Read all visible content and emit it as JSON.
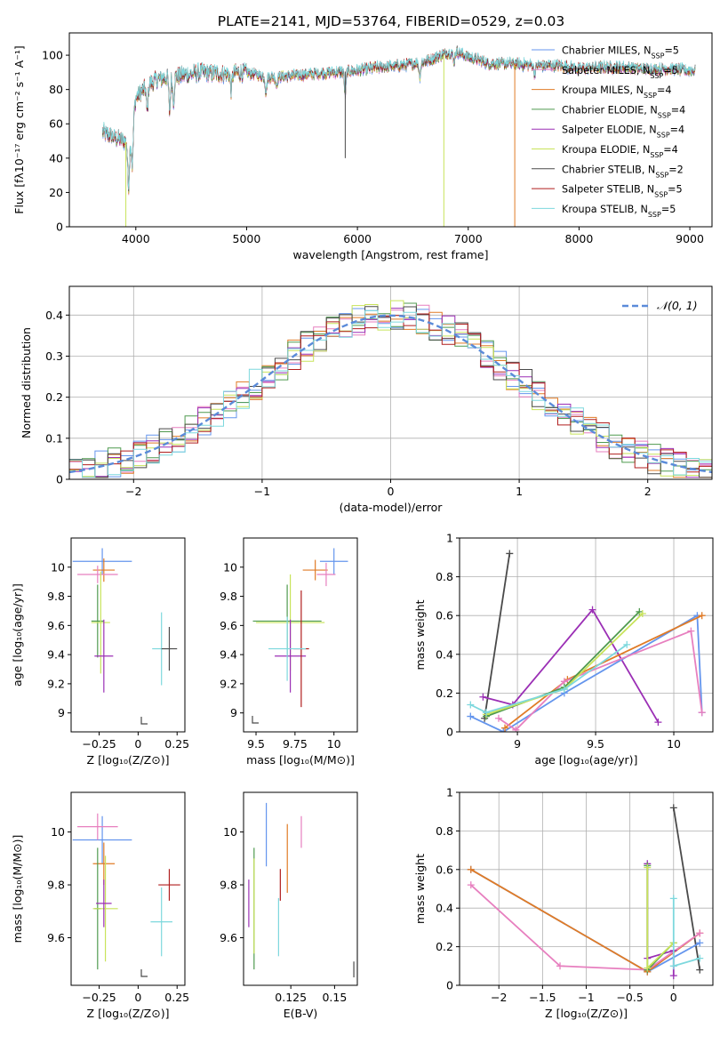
{
  "figure": {
    "title": "PLATE=2141, MJD=53764, FIBERID=0529, z=0.03"
  },
  "colors": {
    "chabrier_miles": "#6495ed",
    "salpeter_miles": "#e77fbf",
    "kroupa_miles": "#e07b26",
    "chabrier_elodie": "#4f9a4f",
    "salpeter_elodie": "#9b2fb5",
    "kroupa_elodie": "#c8e35a",
    "chabrier_stelib": "#4a4a4a",
    "salpeter_stelib": "#b01e1e",
    "kroupa_stelib": "#7dd8dd",
    "normal": "#5b8bd9"
  },
  "chart_data": [
    {
      "type": "line",
      "id": "spectrum",
      "xlabel": "wavelength [Angstrom, rest frame]",
      "ylabel": "Flux [fλ10⁻¹⁷ erg cm⁻² s⁻¹ A⁻¹]",
      "xlim": [
        3400,
        9200
      ],
      "ylim": [
        0,
        113
      ],
      "xticks": [
        "4000",
        "5000",
        "6000",
        "7000",
        "8000",
        "9000"
      ],
      "yticks": [
        "0",
        "20",
        "40",
        "60",
        "80",
        "100"
      ],
      "legend": "top-right",
      "series": [
        {
          "label": "Chabrier MILES, N",
          "sub": "SSP",
          "n": "=5",
          "color": "#6495ed"
        },
        {
          "label": "Salpeter MILES, N",
          "sub": "SSP",
          "n": "=5",
          "color": "#e77fbf"
        },
        {
          "label": "Kroupa MILES, N",
          "sub": "SSP",
          "n": "=4",
          "color": "#e07b26"
        },
        {
          "label": "Chabrier ELODIE, N",
          "sub": "SSP",
          "n": "=4",
          "color": "#4f9a4f"
        },
        {
          "label": "Salpeter ELODIE, N",
          "sub": "SSP",
          "n": "=4",
          "color": "#9b2fb5"
        },
        {
          "label": "Kroupa ELODIE, N",
          "sub": "SSP",
          "n": "=4",
          "color": "#c8e35a"
        },
        {
          "label": "Chabrier STELIB, N",
          "sub": "SSP",
          "n": "=2",
          "color": "#4a4a4a"
        },
        {
          "label": "Salpeter STELIB, N",
          "sub": "SSP",
          "n": "=5",
          "color": "#b01e1e"
        },
        {
          "label": "Kroupa STELIB, N",
          "sub": "SSP",
          "n": "=5",
          "color": "#7dd8dd"
        }
      ],
      "continuum": [
        [
          3700,
          55
        ],
        [
          3800,
          52
        ],
        [
          3900,
          50
        ],
        [
          3950,
          48
        ],
        [
          4000,
          75
        ],
        [
          4100,
          82
        ],
        [
          4200,
          86
        ],
        [
          4400,
          88
        ],
        [
          4600,
          90
        ],
        [
          4800,
          89
        ],
        [
          5000,
          90
        ],
        [
          5200,
          87
        ],
        [
          5400,
          88
        ],
        [
          5600,
          89
        ],
        [
          5800,
          90
        ],
        [
          6000,
          91
        ],
        [
          6200,
          93
        ],
        [
          6400,
          94
        ],
        [
          6600,
          96
        ],
        [
          6800,
          101
        ],
        [
          6900,
          102
        ],
        [
          7000,
          99
        ],
        [
          7200,
          95
        ],
        [
          7400,
          95
        ],
        [
          7600,
          94
        ],
        [
          7800,
          94
        ],
        [
          8000,
          92
        ],
        [
          8200,
          93
        ],
        [
          8400,
          93
        ],
        [
          8600,
          92
        ],
        [
          8800,
          92
        ],
        [
          9000,
          91
        ]
      ],
      "absorption": [
        [
          3934,
          25
        ],
        [
          3969,
          22
        ],
        [
          4102,
          15
        ],
        [
          4305,
          20
        ],
        [
          4340,
          14
        ],
        [
          4861,
          10
        ],
        [
          5175,
          9
        ],
        [
          5270,
          5
        ],
        [
          5890,
          14
        ],
        [
          6563,
          8
        ],
        [
          6870,
          6
        ],
        [
          7600,
          5
        ]
      ],
      "spikes": [
        [
          3910,
          0,
          "#c8e35a"
        ],
        [
          5890,
          40,
          "#4a4a4a"
        ],
        [
          6780,
          0,
          "#c8e35a"
        ],
        [
          7420,
          0,
          "#e07b26"
        ]
      ]
    },
    {
      "type": "step",
      "id": "residuals",
      "xlabel": "(data-model)/error",
      "ylabel": "Normed distribution",
      "xlim": [
        -2.5,
        2.5
      ],
      "ylim": [
        0,
        0.47
      ],
      "xticks": [
        -2,
        -1,
        0,
        1,
        2
      ],
      "yticks": [
        0.0,
        0.1,
        0.2,
        0.3,
        0.4
      ],
      "legend": "top-right",
      "normal_label": "𝒩(0, 1)",
      "bin_width": 0.1
    },
    {
      "type": "errorbar",
      "id": "age_vs_Z",
      "xlabel": "Z [log₁₀(Z/Z⊙)]",
      "ylabel": "age  [log₁₀(age/yr)]",
      "xlim": [
        -0.43,
        0.3
      ],
      "ylim": [
        8.87,
        10.2
      ],
      "xticks": [
        -0.25,
        0.0,
        0.25
      ],
      "yticks": [
        9.0,
        9.2,
        9.4,
        9.6,
        9.8,
        10.0
      ],
      "points": [
        {
          "x": -0.23,
          "y": 10.04,
          "xerr": 0.19,
          "yerr": 0.09,
          "color": "#6495ed"
        },
        {
          "x": -0.22,
          "y": 9.98,
          "xerr": 0.07,
          "yerr": 0.08,
          "color": "#e07b26"
        },
        {
          "x": -0.26,
          "y": 9.95,
          "xerr": 0.13,
          "yerr": 0.06,
          "color": "#e77fbf"
        },
        {
          "x": -0.26,
          "y": 9.63,
          "xerr": 0.04,
          "yerr": 0.25,
          "color": "#4f9a4f"
        },
        {
          "x": -0.24,
          "y": 9.62,
          "xerr": 0.06,
          "yerr": 0.35,
          "color": "#c8e35a"
        },
        {
          "x": -0.22,
          "y": 9.39,
          "xerr": 0.06,
          "yerr": 0.25,
          "color": "#9b2fb5"
        },
        {
          "x": 0.15,
          "y": 9.44,
          "xerr": 0.06,
          "yerr": 0.25,
          "color": "#7dd8dd"
        },
        {
          "x": 0.2,
          "y": 9.44,
          "xerr": 0.05,
          "yerr": 0.15,
          "color": "#4a4a4a"
        }
      ]
    },
    {
      "type": "errorbar",
      "id": "age_vs_mass",
      "xlabel": "mass [log₁₀(M/M⊙)]",
      "ylabel": "",
      "xlim": [
        9.42,
        10.15
      ],
      "ylim": [
        8.87,
        10.2
      ],
      "xticks": [
        9.5,
        9.75,
        10.0
      ],
      "yticks": [
        9.0,
        9.2,
        9.4,
        9.6,
        9.8,
        10.0
      ],
      "points": [
        {
          "x": 10.0,
          "y": 10.04,
          "xerr": 0.09,
          "yerr": 0.09,
          "color": "#6495ed"
        },
        {
          "x": 9.88,
          "y": 9.98,
          "xerr": 0.08,
          "yerr": 0.07,
          "color": "#e07b26"
        },
        {
          "x": 9.95,
          "y": 9.95,
          "xerr": 0.06,
          "yerr": 0.08,
          "color": "#e77fbf"
        },
        {
          "x": 9.7,
          "y": 9.63,
          "xerr": 0.22,
          "yerr": 0.25,
          "color": "#4f9a4f"
        },
        {
          "x": 9.72,
          "y": 9.62,
          "xerr": 0.22,
          "yerr": 0.33,
          "color": "#c8e35a"
        },
        {
          "x": 9.72,
          "y": 9.39,
          "xerr": 0.1,
          "yerr": 0.25,
          "color": "#9b2fb5"
        },
        {
          "x": 9.79,
          "y": 9.44,
          "xerr": 0.05,
          "yerr": 0.4,
          "color": "#b01e1e"
        },
        {
          "x": 9.7,
          "y": 9.44,
          "xerr": 0.12,
          "yerr": 0.22,
          "color": "#7dd8dd"
        }
      ]
    },
    {
      "type": "line",
      "id": "massweight_vs_age",
      "xlabel": "age  [log₁₀(age/yr)]",
      "ylabel": "mass weight",
      "xlim": [
        8.63,
        10.25
      ],
      "ylim": [
        0,
        1
      ],
      "xticks": [
        9.0,
        9.5,
        10.0
      ],
      "yticks": [
        0.0,
        0.2,
        0.4,
        0.6,
        0.8,
        1.0
      ],
      "grid": true,
      "series": [
        {
          "color": "#4a4a4a",
          "points": [
            [
              8.79,
              0.07
            ],
            [
              8.95,
              0.92
            ]
          ]
        },
        {
          "color": "#9b2fb5",
          "points": [
            [
              8.78,
              0.18
            ],
            [
              8.97,
              0.14
            ],
            [
              9.48,
              0.63
            ],
            [
              9.9,
              0.05
            ]
          ]
        },
        {
          "color": "#6495ed",
          "points": [
            [
              8.7,
              0.08
            ],
            [
              8.91,
              0.0
            ],
            [
              9.3,
              0.2
            ],
            [
              10.15,
              0.6
            ],
            [
              10.18,
              0.1
            ]
          ]
        },
        {
          "color": "#e07b26",
          "points": [
            [
              8.92,
              0.02
            ],
            [
              9.32,
              0.27
            ],
            [
              10.18,
              0.6
            ]
          ]
        },
        {
          "color": "#e77fbf",
          "points": [
            [
              8.88,
              0.07
            ],
            [
              8.99,
              0.01
            ],
            [
              9.3,
              0.26
            ],
            [
              10.11,
              0.52
            ],
            [
              10.18,
              0.1
            ]
          ]
        },
        {
          "color": "#4f9a4f",
          "points": [
            [
              8.8,
              0.08
            ],
            [
              9.3,
              0.23
            ],
            [
              9.78,
              0.62
            ]
          ]
        },
        {
          "color": "#c8e35a",
          "points": [
            [
              8.8,
              0.09
            ],
            [
              9.3,
              0.22
            ],
            [
              9.8,
              0.61
            ]
          ]
        },
        {
          "color": "#7dd8dd",
          "points": [
            [
              8.7,
              0.14
            ],
            [
              8.8,
              0.1
            ],
            [
              9.3,
              0.22
            ],
            [
              9.7,
              0.45
            ]
          ]
        }
      ]
    },
    {
      "type": "errorbar",
      "id": "mass_vs_Z",
      "xlabel": "Z [log₁₀(Z/Z⊙)]",
      "ylabel": "mass [log₁₀(M/M⊙)]",
      "xlim": [
        -0.43,
        0.3
      ],
      "ylim": [
        9.42,
        10.15
      ],
      "xticks": [
        -0.25,
        0.0,
        0.25
      ],
      "yticks": [
        9.6,
        9.8,
        10.0
      ],
      "points": [
        {
          "x": -0.23,
          "y": 9.97,
          "xerr": 0.19,
          "yerr": 0.09,
          "color": "#6495ed"
        },
        {
          "x": -0.22,
          "y": 9.88,
          "xerr": 0.07,
          "yerr": 0.08,
          "color": "#e07b26"
        },
        {
          "x": -0.26,
          "y": 10.02,
          "xerr": 0.13,
          "yerr": 0.05,
          "color": "#e77fbf"
        },
        {
          "x": -0.26,
          "y": 9.71,
          "xerr": 0.02,
          "yerr": 0.23,
          "color": "#4f9a4f"
        },
        {
          "x": -0.21,
          "y": 9.71,
          "xerr": 0.08,
          "yerr": 0.2,
          "color": "#c8e35a"
        },
        {
          "x": -0.22,
          "y": 9.73,
          "xerr": 0.05,
          "yerr": 0.09,
          "color": "#9b2fb5"
        },
        {
          "x": 0.2,
          "y": 9.8,
          "xerr": 0.07,
          "yerr": 0.06,
          "color": "#b01e1e"
        },
        {
          "x": 0.15,
          "y": 9.66,
          "xerr": 0.07,
          "yerr": 0.13,
          "color": "#7dd8dd"
        }
      ]
    },
    {
      "type": "errorbar",
      "id": "mass_vs_ebv",
      "xlabel": "E(B-V)",
      "ylabel": "",
      "xlim": [
        0.098,
        0.163
      ],
      "ylim": [
        9.42,
        10.15
      ],
      "xticks": [
        0.125,
        0.15
      ],
      "yticks": [
        9.6,
        9.8,
        10.0
      ],
      "points": [
        {
          "x": 0.111,
          "y": 9.99,
          "xerr": 0,
          "yerr": 0.12,
          "color": "#6495ed"
        },
        {
          "x": 0.123,
          "y": 9.9,
          "xerr": 0,
          "yerr": 0.13,
          "color": "#e07b26"
        },
        {
          "x": 0.131,
          "y": 10.0,
          "xerr": 0,
          "yerr": 0.06,
          "color": "#e77fbf"
        },
        {
          "x": 0.104,
          "y": 9.71,
          "xerr": 0,
          "yerr": 0.23,
          "color": "#4f9a4f"
        },
        {
          "x": 0.104,
          "y": 9.72,
          "xerr": 0,
          "yerr": 0.18,
          "color": "#c8e35a"
        },
        {
          "x": 0.101,
          "y": 9.73,
          "xerr": 0,
          "yerr": 0.09,
          "color": "#9b2fb5"
        },
        {
          "x": 0.119,
          "y": 9.8,
          "xerr": 0,
          "yerr": 0.06,
          "color": "#b01e1e"
        },
        {
          "x": 0.118,
          "y": 9.64,
          "xerr": 0,
          "yerr": 0.11,
          "color": "#7dd8dd"
        },
        {
          "x": 0.161,
          "y": 9.48,
          "xerr": 0,
          "yerr": 0.03,
          "color": "#4a4a4a"
        }
      ]
    },
    {
      "type": "line",
      "id": "massweight_vs_Z",
      "xlabel": "Z [log₁₀(Z/Z⊙)]",
      "ylabel": "mass weight",
      "xlim": [
        -2.45,
        0.45
      ],
      "ylim": [
        0,
        1
      ],
      "xticks": [
        -2.0,
        -1.5,
        -1.0,
        -0.5,
        0.0
      ],
      "yticks": [
        0.0,
        0.2,
        0.4,
        0.6,
        0.8,
        1.0
      ],
      "grid": true,
      "series": [
        {
          "color": "#4a4a4a",
          "points": [
            [
              0.0,
              0.92
            ],
            [
              0.3,
              0.08
            ]
          ]
        },
        {
          "color": "#6495ed",
          "points": [
            [
              -2.32,
              0.6
            ],
            [
              -0.3,
              0.07
            ],
            [
              0.3,
              0.22
            ]
          ]
        },
        {
          "color": "#e07b26",
          "points": [
            [
              -2.32,
              0.6
            ],
            [
              -0.3,
              0.07
            ],
            [
              0.3,
              0.27
            ]
          ]
        },
        {
          "color": "#e77fbf",
          "points": [
            [
              -2.32,
              0.52
            ],
            [
              -1.3,
              0.1
            ],
            [
              -0.3,
              0.08
            ],
            [
              0.3,
              0.27
            ]
          ]
        },
        {
          "color": "#9b2fb5",
          "points": [
            [
              -0.3,
              0.63
            ],
            [
              -0.3,
              0.14
            ],
            [
              0.0,
              0.18
            ],
            [
              0.0,
              0.05
            ]
          ]
        },
        {
          "color": "#4f9a4f",
          "points": [
            [
              -0.3,
              0.62
            ],
            [
              -0.3,
              0.08
            ],
            [
              0.0,
              0.22
            ]
          ]
        },
        {
          "color": "#c8e35a",
          "points": [
            [
              -0.3,
              0.61
            ],
            [
              -0.3,
              0.09
            ],
            [
              0.0,
              0.22
            ]
          ]
        },
        {
          "color": "#7dd8dd",
          "points": [
            [
              0.0,
              0.45
            ],
            [
              0.0,
              0.1
            ],
            [
              0.3,
              0.14
            ]
          ]
        }
      ]
    }
  ]
}
